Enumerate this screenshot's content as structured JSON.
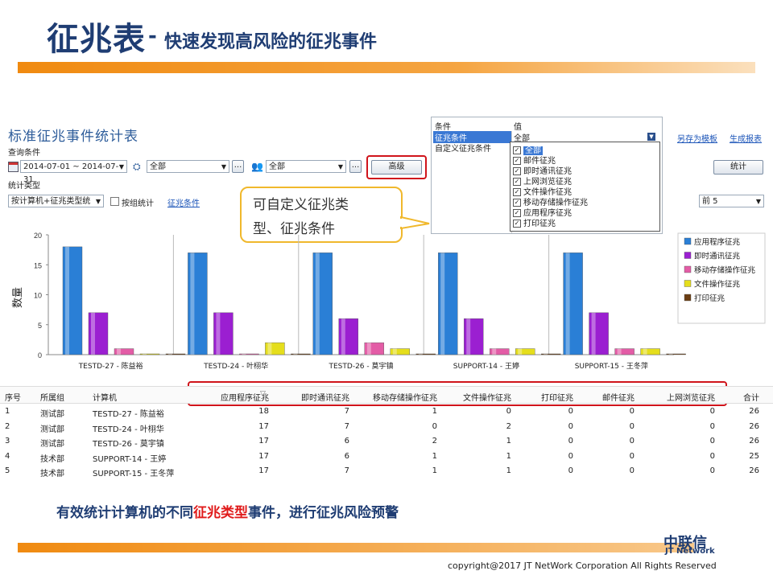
{
  "slide": {
    "title_main": "征兆表",
    "title_dash": "-",
    "title_sub": "快速发现高风险的征兆事件",
    "bottom_text_a": "有效统计计算机的不同",
    "bottom_text_red": "征兆类型",
    "bottom_text_b": "事件，进行征兆风险预警",
    "copyright": "copyright@2017 JT NetWork Corporation All Rights Reserved",
    "logo_cn": "中联信",
    "logo_en": "JT Network",
    "callout_line1": "可自定义征兆类",
    "callout_line2": "型、征兆条件"
  },
  "app": {
    "title": "标准征兆事件统计表",
    "query_label": "查询条件",
    "date_range": "2014-07-01 ~ 2014-07-31",
    "computer_filter": "全部",
    "user_filter": "全部",
    "ellipsis": "...",
    "advanced_button": "高级",
    "stat_type_label": "统计类型",
    "stat_type_value": "按计算机+征兆类型统",
    "group_stat_label": "按组统计",
    "condition_link": "征兆条件",
    "save_template": "另存为模板",
    "generate_report": "生成报表",
    "stat_button": "统计",
    "top_select": "前 5",
    "colors": {
      "accent": "#1f3d73",
      "highlight": "#d0141b",
      "orange": "#f08a10"
    }
  },
  "popup": {
    "col_condition": "条件",
    "col_value": "值",
    "rows": [
      "征兆条件",
      "自定义征兆条件"
    ],
    "selected_value": "全部",
    "options": [
      "全部",
      "邮件征兆",
      "即时通讯征兆",
      "上网浏览征兆",
      "文件操作征兆",
      "移动存储操作征兆",
      "应用程序征兆",
      "打印征兆"
    ]
  },
  "chart_data": {
    "type": "bar",
    "ylabel": "数量",
    "ylim": [
      0,
      20
    ],
    "yticks": [
      0,
      5,
      10,
      15,
      20
    ],
    "categories": [
      "TESTD-27 - 陈益裕",
      "TESTD-24 - 叶栩华",
      "TESTD-26 - 莫宇镇",
      "SUPPORT-14 - 王婷",
      "SUPPORT-15 - 王冬萍"
    ],
    "series": [
      {
        "name": "应用程序征兆",
        "color": "#2a7fd6",
        "values": [
          18,
          17,
          17,
          17,
          17
        ]
      },
      {
        "name": "即时通讯征兆",
        "color": "#9b1fd1",
        "values": [
          7,
          7,
          6,
          6,
          7
        ]
      },
      {
        "name": "移动存储操作征兆",
        "color": "#e35ca6",
        "values": [
          1,
          0,
          2,
          1,
          1
        ]
      },
      {
        "name": "文件操作征兆",
        "color": "#e5de1c",
        "values": [
          0,
          2,
          1,
          1,
          1
        ]
      },
      {
        "name": "打印征兆",
        "color": "#6b3d12",
        "values": [
          0,
          0,
          0,
          0,
          0
        ]
      }
    ],
    "legend_position": "right"
  },
  "table": {
    "headers": [
      "序号",
      "所属组",
      "计算机",
      "应用程序征兆",
      "即时通讯征兆",
      "移动存储操作征兆",
      "文件操作征兆",
      "打印征兆",
      "邮件征兆",
      "上网浏览征兆",
      "合计"
    ],
    "rows": [
      [
        "1",
        "测试部",
        "TESTD-27 - 陈益裕",
        "18",
        "7",
        "1",
        "0",
        "0",
        "0",
        "0",
        "26"
      ],
      [
        "2",
        "测试部",
        "TESTD-24 - 叶栩华",
        "17",
        "7",
        "0",
        "2",
        "0",
        "0",
        "0",
        "26"
      ],
      [
        "3",
        "测试部",
        "TESTD-26 - 莫宇镇",
        "17",
        "6",
        "2",
        "1",
        "0",
        "0",
        "0",
        "26"
      ],
      [
        "4",
        "技术部",
        "SUPPORT-14 - 王婷",
        "17",
        "6",
        "1",
        "1",
        "0",
        "0",
        "0",
        "25"
      ],
      [
        "5",
        "技术部",
        "SUPPORT-15 - 王冬萍",
        "17",
        "7",
        "1",
        "1",
        "0",
        "0",
        "0",
        "26"
      ]
    ]
  }
}
